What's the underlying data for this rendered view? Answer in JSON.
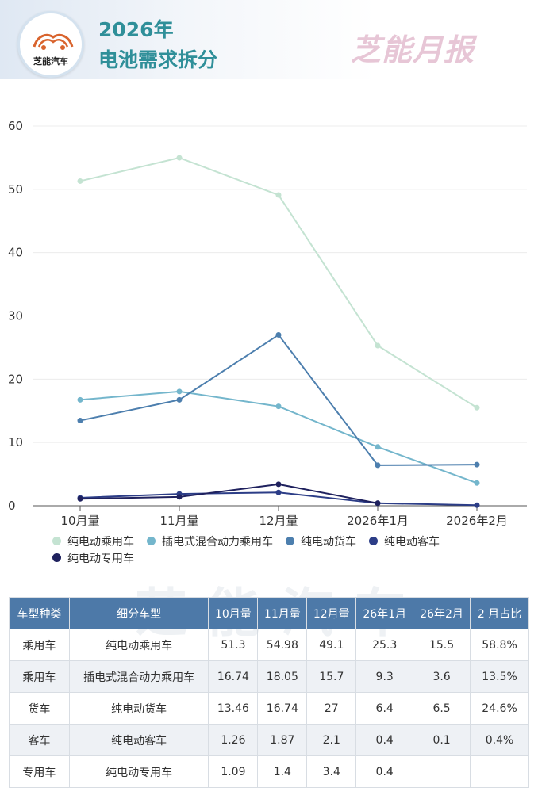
{
  "header": {
    "logo_text": "芝能汽车",
    "title_line1": "2026年",
    "title_line2": "电池需求拆分",
    "brand": "芝能月报"
  },
  "watermark": "芝能汽车",
  "chart_data": {
    "type": "line",
    "categories": [
      "10月量",
      "11月量",
      "12月量",
      "2026年1月",
      "2026年2月"
    ],
    "ylim": [
      0,
      60
    ],
    "yticks": [
      0,
      10,
      20,
      30,
      40,
      50,
      60
    ],
    "grid": true,
    "legend_placement": "bottom",
    "series": [
      {
        "name": "纯电动乘用车",
        "color": "#c4e3d2",
        "values": [
          51.3,
          54.98,
          49.1,
          25.3,
          15.5
        ]
      },
      {
        "name": "插电式混合动力乘用车",
        "color": "#74b6cc",
        "values": [
          16.74,
          18.05,
          15.7,
          9.3,
          3.6
        ]
      },
      {
        "name": "纯电动货车",
        "color": "#4d7fae",
        "values": [
          13.46,
          16.74,
          27,
          6.4,
          6.5
        ]
      },
      {
        "name": "纯电动客车",
        "color": "#2c3d87",
        "values": [
          1.26,
          1.87,
          2.1,
          0.4,
          0.1
        ]
      },
      {
        "name": "纯电动专用车",
        "color": "#1f215e",
        "values": [
          1.09,
          1.4,
          3.4,
          0.4,
          null
        ]
      }
    ]
  },
  "table": {
    "headers": [
      "车型种类",
      "细分车型",
      "10月量",
      "11月量",
      "12月量",
      "26年1月",
      "26年2月",
      "2 月占比"
    ],
    "rows": [
      [
        "乘用车",
        "纯电动乘用车",
        "51.3",
        "54.98",
        "49.1",
        "25.3",
        "15.5",
        "58.8%"
      ],
      [
        "乘用车",
        "插电式混合动力乘用车",
        "16.74",
        "18.05",
        "15.7",
        "9.3",
        "3.6",
        "13.5%"
      ],
      [
        "货车",
        "纯电动货车",
        "13.46",
        "16.74",
        "27",
        "6.4",
        "6.5",
        "24.6%"
      ],
      [
        "客车",
        "纯电动客车",
        "1.26",
        "1.87",
        "2.1",
        "0.4",
        "0.1",
        "0.4%"
      ],
      [
        "专用车",
        "纯电动专用车",
        "1.09",
        "1.4",
        "3.4",
        "0.4",
        "",
        ""
      ]
    ]
  }
}
